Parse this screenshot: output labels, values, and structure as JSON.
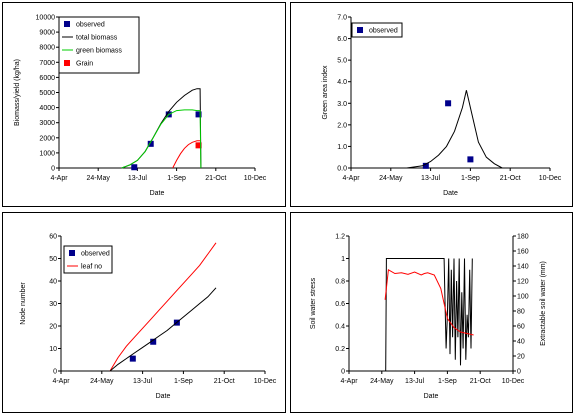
{
  "chart_data": [
    {
      "type": "scatter",
      "xlabel": "Date",
      "ylabel": "Biomass/yield (kg/ha)",
      "xticks": [
        "4-Apr",
        "24-May",
        "13-Jul",
        "1-Sep",
        "21-Oct",
        "10-Dec"
      ],
      "xlim": [
        0,
        250
      ],
      "ylim": [
        0,
        10000
      ],
      "yticks": [
        0,
        1000,
        2000,
        3000,
        4000,
        5000,
        6000,
        7000,
        8000,
        9000,
        10000
      ],
      "legend": [
        "observed",
        "total biomass",
        "green biomass",
        "Grain"
      ],
      "legend_position": "top-left",
      "colors": {
        "observed": "#00008b",
        "total biomass": "#000000",
        "green biomass": "#00cc00",
        "Grain": "#ff0000"
      },
      "series": [
        {
          "name": "observed",
          "kind": "points",
          "x": [
            96,
            117,
            140,
            178
          ],
          "y": [
            50,
            1600,
            3550,
            3550
          ]
        },
        {
          "name": "Grain",
          "kind": "points",
          "x": [
            178
          ],
          "y": [
            1500
          ]
        },
        {
          "name": "total biomass",
          "kind": "line",
          "x": [
            80,
            90,
            100,
            110,
            120,
            130,
            140,
            150,
            160,
            170,
            176,
            180,
            181
          ],
          "y": [
            0,
            200,
            500,
            1100,
            2000,
            2950,
            3750,
            4350,
            4800,
            5150,
            5250,
            5250,
            0
          ]
        },
        {
          "name": "green biomass",
          "kind": "line",
          "x": [
            80,
            90,
            100,
            110,
            120,
            130,
            140,
            150,
            160,
            170,
            176,
            180,
            181
          ],
          "y": [
            0,
            200,
            500,
            1100,
            2000,
            2900,
            3550,
            3800,
            3850,
            3850,
            3800,
            3800,
            0
          ]
        },
        {
          "name": "Grain",
          "kind": "line",
          "x": [
            145,
            150,
            155,
            160,
            165,
            170,
            176,
            180
          ],
          "y": [
            0,
            500,
            950,
            1300,
            1550,
            1700,
            1800,
            1800
          ]
        }
      ]
    },
    {
      "type": "scatter",
      "xlabel": "Date",
      "ylabel": "Green area index",
      "xticks": [
        "4-Apr",
        "24-May",
        "13-Jul",
        "1-Sep",
        "21-Oct",
        "10-Dec"
      ],
      "xlim": [
        0,
        250
      ],
      "ylim": [
        0,
        7
      ],
      "yticks": [
        "0.0",
        "1.0",
        "2.0",
        "3.0",
        "4.0",
        "5.0",
        "6.0",
        "7.0"
      ],
      "legend": [
        "observed"
      ],
      "legend_position": "top-left",
      "colors": {
        "observed": "#00008b",
        "line": "#000000"
      },
      "series": [
        {
          "name": "observed",
          "kind": "points",
          "x": [
            94,
            122,
            150
          ],
          "y": [
            0.1,
            3.0,
            0.4
          ]
        },
        {
          "name": "",
          "kind": "line",
          "x": [
            70,
            80,
            90,
            100,
            110,
            120,
            130,
            140,
            145,
            150,
            155,
            160,
            170,
            180,
            190
          ],
          "y": [
            0,
            0.05,
            0.1,
            0.3,
            0.6,
            1.0,
            1.7,
            2.8,
            3.6,
            2.8,
            2.0,
            1.2,
            0.5,
            0.2,
            0
          ]
        }
      ]
    },
    {
      "type": "scatter",
      "xlabel": "Date",
      "ylabel": "Node number",
      "xticks": [
        "4-Apr",
        "24-May",
        "13-Jul",
        "1-Sep",
        "21-Oct",
        "10-Dec"
      ],
      "xlim": [
        0,
        250
      ],
      "ylim": [
        0,
        60
      ],
      "yticks": [
        0,
        10,
        20,
        30,
        40,
        50,
        60
      ],
      "legend": [
        "observed",
        "leaf no"
      ],
      "legend_position": "top-left",
      "colors": {
        "observed": "#00008b",
        "leaf no": "#ff0000",
        "node line": "#000000"
      },
      "series": [
        {
          "name": "observed",
          "kind": "points",
          "x": [
            88,
            113,
            142
          ],
          "y": [
            5.5,
            13,
            21.5
          ]
        },
        {
          "name": "leaf no",
          "kind": "line",
          "x": [
            60,
            70,
            80,
            90,
            100,
            110,
            120,
            130,
            140,
            150,
            160,
            170,
            180,
            190
          ],
          "y": [
            0,
            6,
            11,
            15,
            19,
            23,
            27,
            31,
            35,
            39,
            43,
            47,
            52,
            57
          ]
        },
        {
          "name": "",
          "kind": "line",
          "x": [
            60,
            70,
            80,
            90,
            100,
            110,
            120,
            130,
            140,
            150,
            160,
            170,
            180,
            190
          ],
          "y": [
            0,
            3,
            5.5,
            8,
            10.5,
            13,
            15.5,
            18,
            21,
            24,
            27,
            30,
            33,
            37
          ]
        }
      ]
    },
    {
      "type": "line",
      "xlabel": "Date",
      "ylabel": "Soil water stress",
      "y2label": "Extractable soil water (mm)",
      "xticks": [
        "4-Apr",
        "24-May",
        "13-Jul",
        "1-Sep",
        "21-Oct",
        "10-Dec"
      ],
      "xlim": [
        0,
        250
      ],
      "ylim": [
        0,
        1.2
      ],
      "y2lim": [
        0,
        180
      ],
      "yticks": [
        "0",
        "0.2",
        "0.4",
        "0.6",
        "0.8",
        "1",
        "1.2"
      ],
      "y2ticks": [
        0,
        20,
        40,
        60,
        80,
        100,
        120,
        140,
        160,
        180
      ],
      "colors": {
        "stress": "#000000",
        "esw": "#ff0000"
      },
      "series": [
        {
          "name": "",
          "kind": "line",
          "axis": "left",
          "x": [
            55,
            56,
            57,
            145,
            146,
            148,
            150,
            152,
            154,
            156,
            158,
            160,
            162,
            164,
            166,
            168,
            170,
            172,
            174,
            176,
            178,
            180,
            182,
            184,
            186,
            188
          ],
          "y": [
            0,
            0,
            1,
            1,
            0.7,
            0.2,
            0.5,
            1,
            0.15,
            0.9,
            0.3,
            1,
            0.1,
            0.8,
            0.3,
            1,
            0.05,
            0.7,
            0.2,
            1,
            0.1,
            0.5,
            0.3,
            0.9,
            0.2,
            1
          ]
        },
        {
          "name": "",
          "kind": "line",
          "axis": "right",
          "x": [
            55,
            60,
            70,
            80,
            90,
            100,
            110,
            115,
            120,
            130,
            140,
            150,
            160,
            170,
            180,
            190
          ],
          "y": [
            95,
            135,
            130,
            131,
            129,
            132,
            128,
            130,
            131,
            128,
            110,
            70,
            58,
            52,
            50,
            48
          ]
        }
      ]
    }
  ]
}
